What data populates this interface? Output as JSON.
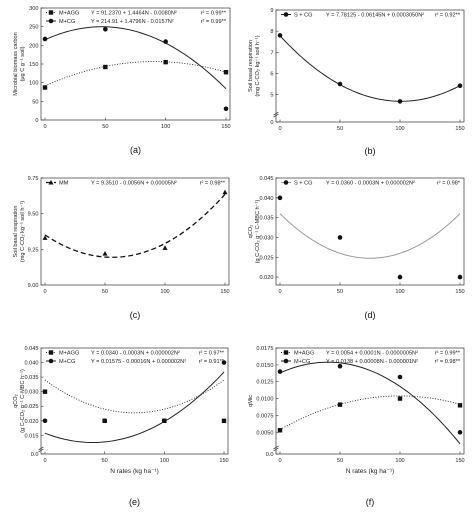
{
  "chart_data": [
    {
      "type": "scatter",
      "letter": "(a)",
      "ylabel": "Microbial biomass carbon",
      "ylabel2": "(μg C g⁻¹ soil)",
      "xlabel": "",
      "ylim": [
        0,
        300
      ],
      "yticks": [
        "0",
        "50",
        "100",
        "150",
        "200",
        "250",
        "300"
      ],
      "xticks": [
        "0",
        "50",
        "100",
        "150"
      ],
      "x": [
        0,
        50,
        100,
        150
      ],
      "series": [
        {
          "name": "M+AGG",
          "values": [
            87,
            142,
            155,
            128
          ],
          "marker": "square",
          "curve": [
            91.237,
            1.4464,
            -0.008
          ],
          "style": "dotted",
          "equation": "Y = 91.2370 + 1.4464N - 0.0080N²",
          "r2": "r² = 0.99**"
        },
        {
          "name": "M+CG",
          "values": [
            217,
            243,
            210,
            30
          ],
          "marker": "circle",
          "curve": [
            214.91,
            1.4796,
            -0.0157
          ],
          "style": "solid",
          "equation": "Y = 214.91 + 1.4796N - 0.0157N²",
          "r2": "r² = 0.99**"
        }
      ]
    },
    {
      "type": "scatter",
      "letter": "(b)",
      "ylabel": "Soil basal respiration",
      "ylabel2": "(mg C-CO₂ kg⁻¹ soil h⁻¹)",
      "xlabel": "",
      "ylim": [
        0,
        9
      ],
      "yticks": [
        "0",
        "5",
        "6",
        "7",
        "8",
        "9"
      ],
      "xticks": [
        "0",
        "50",
        "100",
        "150"
      ],
      "x": [
        0,
        50,
        100,
        150
      ],
      "series": [
        {
          "name": "S + CG",
          "values": [
            7.8,
            5.5,
            4.68,
            5.42
          ],
          "marker": "circle",
          "curve": [
            7.78125,
            -0.06145,
            0.000305
          ],
          "style": "solid",
          "equation": "Y = 7.78125 - 0.06145N + 0.0003050N²",
          "r2": "r² = 0.92**"
        }
      ]
    },
    {
      "type": "scatter",
      "letter": "(c)",
      "ylabel": "Soil basal respiration",
      "ylabel2": "(mg C-CO₂ kg⁻¹ soil h⁻¹)",
      "xlabel": "",
      "ylim": [
        9.0,
        9.75
      ],
      "yticks": [
        "9.00",
        "9.25",
        "9.50",
        "9.75"
      ],
      "xticks": [
        "0",
        "50",
        "100",
        "150"
      ],
      "x": [
        0,
        50,
        100,
        150
      ],
      "series": [
        {
          "name": "MM",
          "values": [
            9.33,
            9.22,
            9.26,
            9.65
          ],
          "marker": "triangle",
          "curve": [
            9.351,
            -0.0056,
            5e-05
          ],
          "style": "dashed",
          "equation": "Y = 9.3510 - 0.0056N + 0.00005N²",
          "r2": "r² = 0.98**"
        }
      ]
    },
    {
      "type": "scatter",
      "letter": "(d)",
      "ylabel": "qCO₂",
      "ylabel2": "(g C-CO₂ g⁻¹ C-MBC h⁻¹)",
      "xlabel": "",
      "ylim": [
        0.015,
        0.045
      ],
      "yticks": [
        "0.020",
        "0.025",
        "0.030",
        "0.035",
        "0.040",
        "0.045"
      ],
      "xticks": [
        "0",
        "50",
        "100",
        "150"
      ],
      "x": [
        0,
        50,
        100,
        150
      ],
      "series": [
        {
          "name": "S + CG",
          "values": [
            0.04,
            0.03,
            0.02,
            0.02
          ],
          "marker": "circle",
          "curve": [
            0.036,
            -0.0003,
            2e-06
          ],
          "style": "solid-gray",
          "equation": "Y = 0.0360 - 0.0003N + 0.000002N²",
          "r2": "r² = 0.98*"
        }
      ]
    },
    {
      "type": "scatter",
      "letter": "(e)",
      "ylabel": "qCO₂",
      "ylabel2": "(g C-CO₂ g⁻¹ C-MBC h⁻¹)",
      "xlabel": "N rates (kg ha⁻¹)",
      "ylim": [
        0.0,
        0.045
      ],
      "yticks": [
        "0.0",
        "0.015",
        "0.020",
        "0.025",
        "0.030",
        "0.035",
        "0.040",
        "0.045"
      ],
      "xticks": [
        "0",
        "50",
        "100",
        "150"
      ],
      "x": [
        0,
        50,
        100,
        150
      ],
      "series": [
        {
          "name": "M+AGG",
          "values": [
            0.03,
            0.02,
            0.02,
            0.02
          ],
          "marker": "square",
          "curve": [
            0.034,
            -0.0003,
            2e-06
          ],
          "style": "dotted",
          "equation": "Y = 0.0340 - 0.0003N + 0.000002N²",
          "r2": "r² = 0.97**"
        },
        {
          "name": "M+CG",
          "values": [
            0.02,
            0.02,
            0.02,
            0.04
          ],
          "marker": "circle",
          "curve": [
            0.01575,
            -0.00016,
            2e-06
          ],
          "style": "solid",
          "equation": "Y = 0.01575 - 0.00016N + 0.000002N²",
          "r2": "r² = 0.91**"
        }
      ]
    },
    {
      "type": "scatter",
      "letter": "(f)",
      "ylabel": "qMic",
      "ylabel2": "",
      "xlabel": "N rates (kg ha⁻¹)",
      "ylim": [
        0.0,
        0.0175
      ],
      "yticks": [
        "0.0",
        "0.0050",
        "0.0075",
        "0.0100",
        "0.0125",
        "0.0150",
        "0.0175"
      ],
      "xticks": [
        "0",
        "50",
        "100",
        "150"
      ],
      "x": [
        0,
        50,
        100,
        150
      ],
      "series": [
        {
          "name": "M+AGG",
          "values": [
            0.0053,
            0.0091,
            0.01,
            0.009
          ],
          "marker": "square",
          "curve": [
            0.0054,
            0.0001,
            -5e-07
          ],
          "style": "dotted",
          "equation": "Y = 0.0054 + 0.0001N - 0.0000005N²",
          "r2": "r² = 0.99**"
        },
        {
          "name": "M+CG",
          "values": [
            0.014,
            0.0148,
            0.0132,
            0.005
          ],
          "marker": "circle",
          "curve": [
            0.0138,
            8e-05,
            -1e-06
          ],
          "style": "solid",
          "equation": "Y = 0.0138 + 0.00008N - 0.000001N²",
          "r2": "r² = 0.98**"
        }
      ]
    }
  ]
}
